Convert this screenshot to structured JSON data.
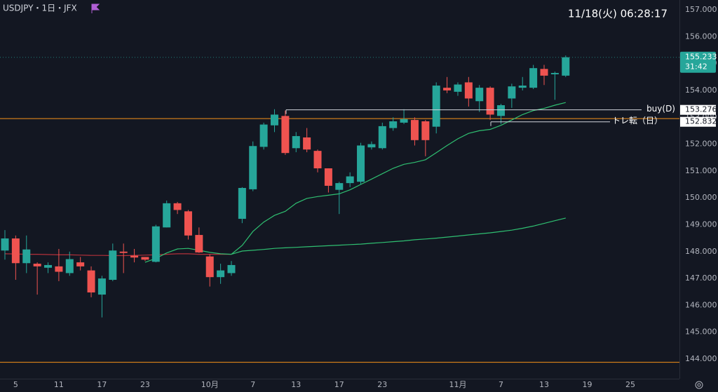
{
  "header": {
    "symbol": "USDJPY・1日・JFX",
    "clock": "11/18(火)   06:28:17",
    "countdown": "31:42"
  },
  "chart_data": {
    "type": "candlestick",
    "categories": [
      null,
      "5",
      null,
      null,
      null,
      "11",
      null,
      null,
      null,
      "17",
      null,
      null,
      null,
      "23",
      null,
      null,
      null,
      null,
      null,
      "10月",
      null,
      null,
      null,
      "7",
      null,
      null,
      null,
      "13",
      null,
      null,
      null,
      "17",
      null,
      null,
      null,
      "23",
      null,
      null,
      null,
      null,
      null,
      null,
      "11月",
      null,
      null,
      null,
      "7",
      null,
      null,
      null,
      "13",
      null,
      null,
      null,
      "19",
      null,
      null,
      null,
      "25",
      null,
      null,
      null
    ],
    "open": [
      148.04,
      148.49,
      147.57,
      147.55,
      147.4,
      147.45,
      147.2,
      147.6,
      147.3,
      146.4,
      146.95,
      148.0,
      147.85,
      147.8,
      147.62,
      148.9,
      149.8,
      149.5,
      148.62,
      147.82,
      147.05,
      147.2,
      149.22,
      150.32,
      151.9,
      152.7,
      153.05,
      151.85,
      152.25,
      151.75,
      151.1,
      150.3,
      150.55,
      150.6,
      151.88,
      151.85,
      152.6,
      152.8,
      152.9,
      152.85,
      152.65,
      154.1,
      153.95,
      154.3,
      153.6,
      154.1,
      153.05,
      153.7,
      154.1,
      154.1,
      154.8,
      154.6,
      154.55,
      null,
      null,
      null,
      null,
      null,
      null,
      null,
      null,
      null
    ],
    "high": [
      148.8,
      148.6,
      148.6,
      147.6,
      147.6,
      148.1,
      148.0,
      147.8,
      147.45,
      147.1,
      148.3,
      148.3,
      148.1,
      147.8,
      149.0,
      149.9,
      149.85,
      149.55,
      148.9,
      147.9,
      147.55,
      147.65,
      150.4,
      152.1,
      152.8,
      153.3,
      153.25,
      152.45,
      152.6,
      151.8,
      151.1,
      150.6,
      150.95,
      152.05,
      152.1,
      152.8,
      153.0,
      153.3,
      153.0,
      152.9,
      154.3,
      154.5,
      154.3,
      154.5,
      154.2,
      154.15,
      153.5,
      154.25,
      154.5,
      154.95,
      154.95,
      154.7,
      155.3,
      null,
      null,
      null,
      null,
      null,
      null,
      null,
      null,
      null
    ],
    "low": [
      147.7,
      146.95,
      147.2,
      146.4,
      147.2,
      146.9,
      147.1,
      147.3,
      146.3,
      145.55,
      146.9,
      147.2,
      147.6,
      147.65,
      147.6,
      148.9,
      149.4,
      148.45,
      147.95,
      146.7,
      146.8,
      147.1,
      149.06,
      150.25,
      151.8,
      152.45,
      151.6,
      151.7,
      151.7,
      150.95,
      150.2,
      149.4,
      150.4,
      150.5,
      151.8,
      151.8,
      152.5,
      152.75,
      151.95,
      151.55,
      152.4,
      153.9,
      153.8,
      153.4,
      153.2,
      152.9,
      152.75,
      153.35,
      154.0,
      154.05,
      154.2,
      153.65,
      154.5,
      null,
      null,
      null,
      null,
      null,
      null,
      null,
      null,
      null
    ],
    "close": [
      148.49,
      147.57,
      148.08,
      147.45,
      147.5,
      147.25,
      147.72,
      147.45,
      146.48,
      147.0,
      148.04,
      147.95,
      147.78,
      147.7,
      148.94,
      149.8,
      149.55,
      148.6,
      147.97,
      147.05,
      147.3,
      147.5,
      150.37,
      151.93,
      152.73,
      153.1,
      151.67,
      152.3,
      151.8,
      151.1,
      150.45,
      150.55,
      150.8,
      151.95,
      152.0,
      152.67,
      152.85,
      152.93,
      152.15,
      152.15,
      154.18,
      154.0,
      154.22,
      153.7,
      154.1,
      153.1,
      153.45,
      154.15,
      154.18,
      154.83,
      154.55,
      154.65,
      155.233,
      null,
      null,
      null,
      null,
      null,
      null,
      null,
      null,
      null
    ],
    "up_color": "#26a69a",
    "down_color": "#ef5350",
    "lines": [
      {
        "color": "#b2303a",
        "values": [
          147.92,
          147.91,
          147.9,
          147.9,
          147.89,
          147.88,
          147.88,
          147.87,
          147.86,
          147.86,
          147.85,
          147.85,
          147.86,
          147.87,
          147.88,
          147.9,
          147.92,
          147.92,
          147.9,
          147.9,
          147.9,
          147.9,
          null,
          null,
          null,
          null,
          null,
          null,
          null,
          null,
          null,
          null,
          null,
          null,
          null,
          null,
          null,
          null,
          null,
          null,
          null,
          null,
          null,
          null,
          null,
          null,
          null,
          null,
          null,
          null,
          null,
          null,
          null,
          null,
          null,
          null,
          null,
          null,
          null,
          null,
          null,
          null
        ]
      },
      {
        "color": "#2fbf71",
        "values": [
          null,
          null,
          null,
          null,
          null,
          null,
          null,
          null,
          null,
          null,
          null,
          null,
          null,
          147.6,
          147.75,
          147.95,
          148.1,
          148.12,
          148.05,
          147.97,
          147.92,
          147.9,
          148.23,
          148.75,
          149.1,
          149.35,
          149.5,
          149.8,
          149.98,
          150.05,
          150.1,
          150.15,
          150.3,
          150.5,
          150.7,
          150.9,
          151.1,
          151.25,
          151.32,
          151.42,
          151.68,
          151.95,
          152.2,
          152.4,
          152.5,
          152.55,
          152.7,
          152.9,
          153.1,
          153.25,
          153.33,
          153.45,
          153.55,
          null,
          null,
          null,
          null,
          null,
          null,
          null,
          null,
          null
        ]
      },
      {
        "color": "#2fbf71",
        "values": [
          null,
          null,
          null,
          null,
          null,
          null,
          null,
          null,
          null,
          null,
          null,
          null,
          null,
          null,
          null,
          null,
          null,
          null,
          null,
          null,
          null,
          147.9,
          148.02,
          148.05,
          148.08,
          148.12,
          148.14,
          148.16,
          148.18,
          148.2,
          148.22,
          148.24,
          148.26,
          148.28,
          148.31,
          148.34,
          148.37,
          148.4,
          148.44,
          148.47,
          148.5,
          148.54,
          148.58,
          148.62,
          148.66,
          148.7,
          148.75,
          148.8,
          148.87,
          148.95,
          149.05,
          149.15,
          149.25,
          null,
          null,
          null,
          null,
          null,
          null,
          null,
          null,
          null
        ]
      }
    ],
    "hlines": [
      {
        "value": 152.95,
        "color": "#f7931a"
      },
      {
        "value": 143.88,
        "color": "#f7931a"
      }
    ],
    "annotations": [
      {
        "label": "buy(D)",
        "value": 153.276
      },
      {
        "label": "トレ転（日）",
        "value": 152.832
      }
    ],
    "ylim": [
      143.27,
      157.366
    ],
    "yticks": [
      {
        "value": 157,
        "label": "157.000"
      },
      {
        "value": 156,
        "label": "156.000"
      },
      {
        "value": 155,
        "label": "155.000"
      },
      {
        "value": 154,
        "label": "154.000"
      },
      {
        "value": 153,
        "label": "153.000"
      },
      {
        "value": 152,
        "label": "152.000"
      },
      {
        "value": 151,
        "label": "151.000"
      },
      {
        "value": 150,
        "label": "150.000"
      },
      {
        "value": 149,
        "label": "149.000"
      },
      {
        "value": 148,
        "label": "148.000"
      },
      {
        "value": 147,
        "label": "147.000"
      },
      {
        "value": 146,
        "label": "146.000"
      },
      {
        "value": 145,
        "label": "145.000"
      },
      {
        "value": 144,
        "label": "144.000"
      }
    ]
  }
}
